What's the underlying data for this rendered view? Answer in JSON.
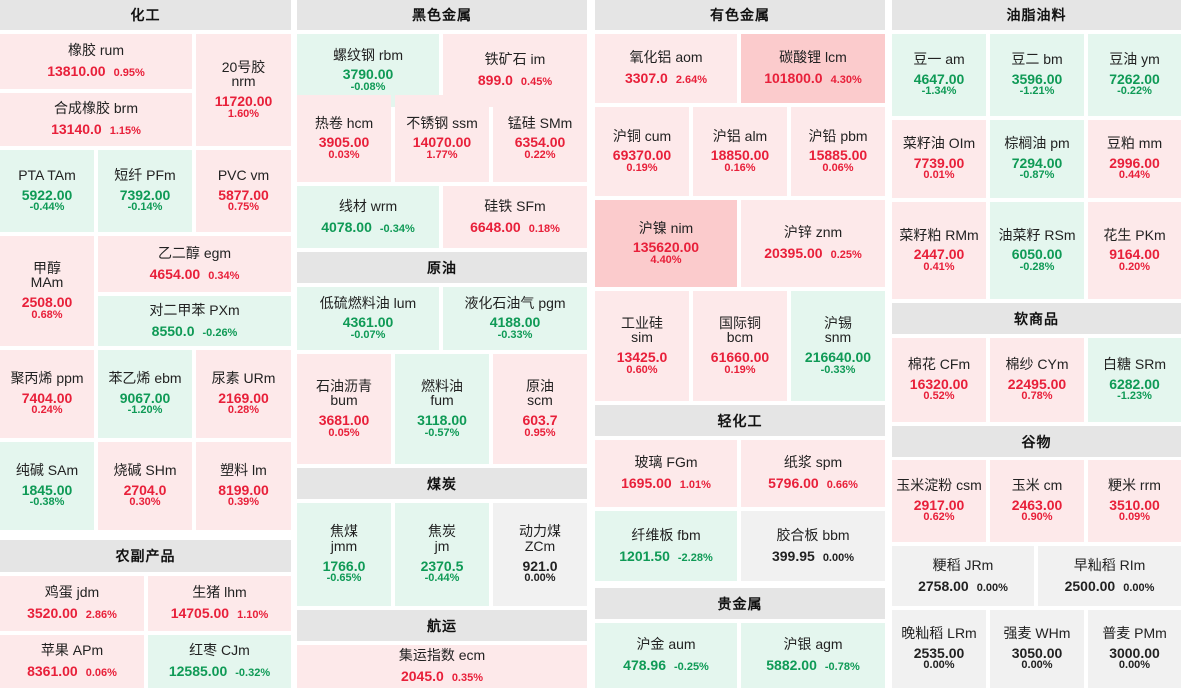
{
  "sections": [
    {
      "title": "化工"
    },
    {
      "title": "黑色金属"
    },
    {
      "title": "有色金属"
    },
    {
      "title": "油脂油料"
    },
    {
      "title": "农副产品"
    },
    {
      "title": "原油"
    },
    {
      "title": "煤炭"
    },
    {
      "title": "航运"
    },
    {
      "title": "轻化工"
    },
    {
      "title": "贵金属"
    },
    {
      "title": "软商品"
    },
    {
      "title": "谷物"
    }
  ],
  "tiles": [
    {
      "name": "橡胶",
      "code": "rum",
      "price": "13810.00",
      "pct": "0.95%",
      "dir": "up"
    },
    {
      "name": "20号胶",
      "code": "nrm",
      "price": "11720.00",
      "pct": "1.60%",
      "dir": "up"
    },
    {
      "name": "合成橡胶",
      "code": "brm",
      "price": "13140.0",
      "pct": "1.15%",
      "dir": "up"
    },
    {
      "name": "PTA",
      "code": "TAm",
      "price": "5922.00",
      "pct": "-0.44%",
      "dir": "dn"
    },
    {
      "name": "短纤",
      "code": "PFm",
      "price": "7392.00",
      "pct": "-0.14%",
      "dir": "dn"
    },
    {
      "name": "PVC",
      "code": "vm",
      "price": "5877.00",
      "pct": "0.75%",
      "dir": "up"
    },
    {
      "name": "甲醇",
      "code": "MAm",
      "price": "2508.00",
      "pct": "0.68%",
      "dir": "up"
    },
    {
      "name": "乙二醇",
      "code": "egm",
      "price": "4654.00",
      "pct": "0.34%",
      "dir": "up"
    },
    {
      "name": "对二甲苯",
      "code": "PXm",
      "price": "8550.0",
      "pct": "-0.26%",
      "dir": "dn"
    },
    {
      "name": "聚丙烯",
      "code": "ppm",
      "price": "7404.00",
      "pct": "0.24%",
      "dir": "up"
    },
    {
      "name": "苯乙烯",
      "code": "ebm",
      "price": "9067.00",
      "pct": "-1.20%",
      "dir": "dn"
    },
    {
      "name": "尿素",
      "code": "URm",
      "price": "2169.00",
      "pct": "0.28%",
      "dir": "up"
    },
    {
      "name": "纯碱",
      "code": "SAm",
      "price": "1845.00",
      "pct": "-0.38%",
      "dir": "dn"
    },
    {
      "name": "烧碱",
      "code": "SHm",
      "price": "2704.0",
      "pct": "0.30%",
      "dir": "up"
    },
    {
      "name": "塑料",
      "code": "lm",
      "price": "8199.00",
      "pct": "0.39%",
      "dir": "up"
    },
    {
      "name": "鸡蛋",
      "code": "jdm",
      "price": "3520.00",
      "pct": "2.86%",
      "dir": "up"
    },
    {
      "name": "生猪",
      "code": "lhm",
      "price": "14705.00",
      "pct": "1.10%",
      "dir": "up"
    },
    {
      "name": "苹果",
      "code": "APm",
      "price": "8361.00",
      "pct": "0.06%",
      "dir": "up"
    },
    {
      "name": "红枣",
      "code": "CJm",
      "price": "12585.00",
      "pct": "-0.32%",
      "dir": "dn"
    },
    {
      "name": "螺纹钢",
      "code": "rbm",
      "price": "3790.00",
      "pct": "-0.08%",
      "dir": "dn"
    },
    {
      "name": "铁矿石",
      "code": "im",
      "price": "899.0",
      "pct": "0.45%",
      "dir": "up"
    },
    {
      "name": "热卷",
      "code": "hcm",
      "price": "3905.00",
      "pct": "0.03%",
      "dir": "up"
    },
    {
      "name": "不锈钢",
      "code": "ssm",
      "price": "14070.00",
      "pct": "1.77%",
      "dir": "up"
    },
    {
      "name": "锰硅",
      "code": "SMm",
      "price": "6354.00",
      "pct": "0.22%",
      "dir": "up"
    },
    {
      "name": "线材",
      "code": "wrm",
      "price": "4078.00",
      "pct": "-0.34%",
      "dir": "dn"
    },
    {
      "name": "硅铁",
      "code": "SFm",
      "price": "6648.00",
      "pct": "0.18%",
      "dir": "up"
    },
    {
      "name": "低硫燃料油",
      "code": "lum",
      "price": "4361.00",
      "pct": "-0.07%",
      "dir": "dn"
    },
    {
      "name": "液化石油气",
      "code": "pgm",
      "price": "4188.00",
      "pct": "-0.33%",
      "dir": "dn"
    },
    {
      "name": "石油沥青",
      "code": "bum",
      "price": "3681.00",
      "pct": "0.05%",
      "dir": "up"
    },
    {
      "name": "燃料油",
      "code": "fum",
      "price": "3118.00",
      "pct": "-0.57%",
      "dir": "dn"
    },
    {
      "name": "原油",
      "code": "scm",
      "price": "603.7",
      "pct": "0.95%",
      "dir": "up"
    },
    {
      "name": "焦煤",
      "code": "jmm",
      "price": "1766.0",
      "pct": "-0.65%",
      "dir": "dn"
    },
    {
      "name": "焦炭",
      "code": "jm",
      "price": "2370.5",
      "pct": "-0.44%",
      "dir": "dn"
    },
    {
      "name": "动力煤",
      "code": "ZCm",
      "price": "921.0",
      "pct": "0.00%",
      "dir": "fl"
    },
    {
      "name": "集运指数",
      "code": "ecm",
      "price": "2045.0",
      "pct": "0.35%",
      "dir": "up"
    },
    {
      "name": "氧化铝",
      "code": "aom",
      "price": "3307.0",
      "pct": "2.64%",
      "dir": "up"
    },
    {
      "name": "碳酸锂",
      "code": "lcm",
      "price": "101800.0",
      "pct": "4.30%",
      "dir": "up2"
    },
    {
      "name": "沪铜",
      "code": "cum",
      "price": "69370.00",
      "pct": "0.19%",
      "dir": "up"
    },
    {
      "name": "沪铝",
      "code": "alm",
      "price": "18850.00",
      "pct": "0.16%",
      "dir": "up"
    },
    {
      "name": "沪铅",
      "code": "pbm",
      "price": "15885.00",
      "pct": "0.06%",
      "dir": "up"
    },
    {
      "name": "沪镍",
      "code": "nim",
      "price": "135620.00",
      "pct": "4.40%",
      "dir": "up2"
    },
    {
      "name": "沪锌",
      "code": "znm",
      "price": "20395.00",
      "pct": "0.25%",
      "dir": "up"
    },
    {
      "name": "工业硅",
      "code": "sim",
      "price": "13425.0",
      "pct": "0.60%",
      "dir": "up"
    },
    {
      "name": "国际铜",
      "code": "bcm",
      "price": "61660.00",
      "pct": "0.19%",
      "dir": "up"
    },
    {
      "name": "沪锡",
      "code": "snm",
      "price": "216640.00",
      "pct": "-0.33%",
      "dir": "dn"
    },
    {
      "name": "玻璃",
      "code": "FGm",
      "price": "1695.00",
      "pct": "1.01%",
      "dir": "up"
    },
    {
      "name": "纸浆",
      "code": "spm",
      "price": "5796.00",
      "pct": "0.66%",
      "dir": "up"
    },
    {
      "name": "纤维板",
      "code": "fbm",
      "price": "1201.50",
      "pct": "-2.28%",
      "dir": "dn"
    },
    {
      "name": "胶合板",
      "code": "bbm",
      "price": "399.95",
      "pct": "0.00%",
      "dir": "fl"
    },
    {
      "name": "沪金",
      "code": "aum",
      "price": "478.96",
      "pct": "-0.25%",
      "dir": "dn"
    },
    {
      "name": "沪银",
      "code": "agm",
      "price": "5882.00",
      "pct": "-0.78%",
      "dir": "dn"
    },
    {
      "name": "豆一",
      "code": "am",
      "price": "4647.00",
      "pct": "-1.34%",
      "dir": "dn"
    },
    {
      "name": "豆二",
      "code": "bm",
      "price": "3596.00",
      "pct": "-1.21%",
      "dir": "dn"
    },
    {
      "name": "豆油",
      "code": "ym",
      "price": "7262.00",
      "pct": "-0.22%",
      "dir": "dn"
    },
    {
      "name": "菜籽油",
      "code": "OIm",
      "price": "7739.00",
      "pct": "0.01%",
      "dir": "up"
    },
    {
      "name": "棕榈油",
      "code": "pm",
      "price": "7294.00",
      "pct": "-0.87%",
      "dir": "dn"
    },
    {
      "name": "豆粕",
      "code": "mm",
      "price": "2996.00",
      "pct": "0.44%",
      "dir": "up"
    },
    {
      "name": "菜籽粕",
      "code": "RMm",
      "price": "2447.00",
      "pct": "0.41%",
      "dir": "up"
    },
    {
      "name": "油菜籽",
      "code": "RSm",
      "price": "6050.00",
      "pct": "-0.28%",
      "dir": "dn"
    },
    {
      "name": "花生",
      "code": "PKm",
      "price": "9164.00",
      "pct": "0.20%",
      "dir": "up"
    },
    {
      "name": "棉花",
      "code": "CFm",
      "price": "16320.00",
      "pct": "0.52%",
      "dir": "up"
    },
    {
      "name": "棉纱",
      "code": "CYm",
      "price": "22495.00",
      "pct": "0.78%",
      "dir": "up"
    },
    {
      "name": "白糖",
      "code": "SRm",
      "price": "6282.00",
      "pct": "-1.23%",
      "dir": "dn"
    },
    {
      "name": "玉米淀粉",
      "code": "csm",
      "price": "2917.00",
      "pct": "0.62%",
      "dir": "up"
    },
    {
      "name": "玉米",
      "code": "cm",
      "price": "2463.00",
      "pct": "0.90%",
      "dir": "up"
    },
    {
      "name": "粳米",
      "code": "rrm",
      "price": "3510.00",
      "pct": "0.09%",
      "dir": "up"
    },
    {
      "name": "粳稻",
      "code": "JRm",
      "price": "2758.00",
      "pct": "0.00%",
      "dir": "fl"
    },
    {
      "name": "早籼稻",
      "code": "RIm",
      "price": "2500.00",
      "pct": "0.00%",
      "dir": "fl"
    },
    {
      "name": "晚籼稻",
      "code": "LRm",
      "price": "2535.00",
      "pct": "0.00%",
      "dir": "fl"
    },
    {
      "name": "强麦",
      "code": "WHm",
      "price": "3050.00",
      "pct": "0.00%",
      "dir": "fl"
    },
    {
      "name": "普麦",
      "code": "PMm",
      "price": "3000.00",
      "pct": "0.00%",
      "dir": "fl"
    }
  ]
}
